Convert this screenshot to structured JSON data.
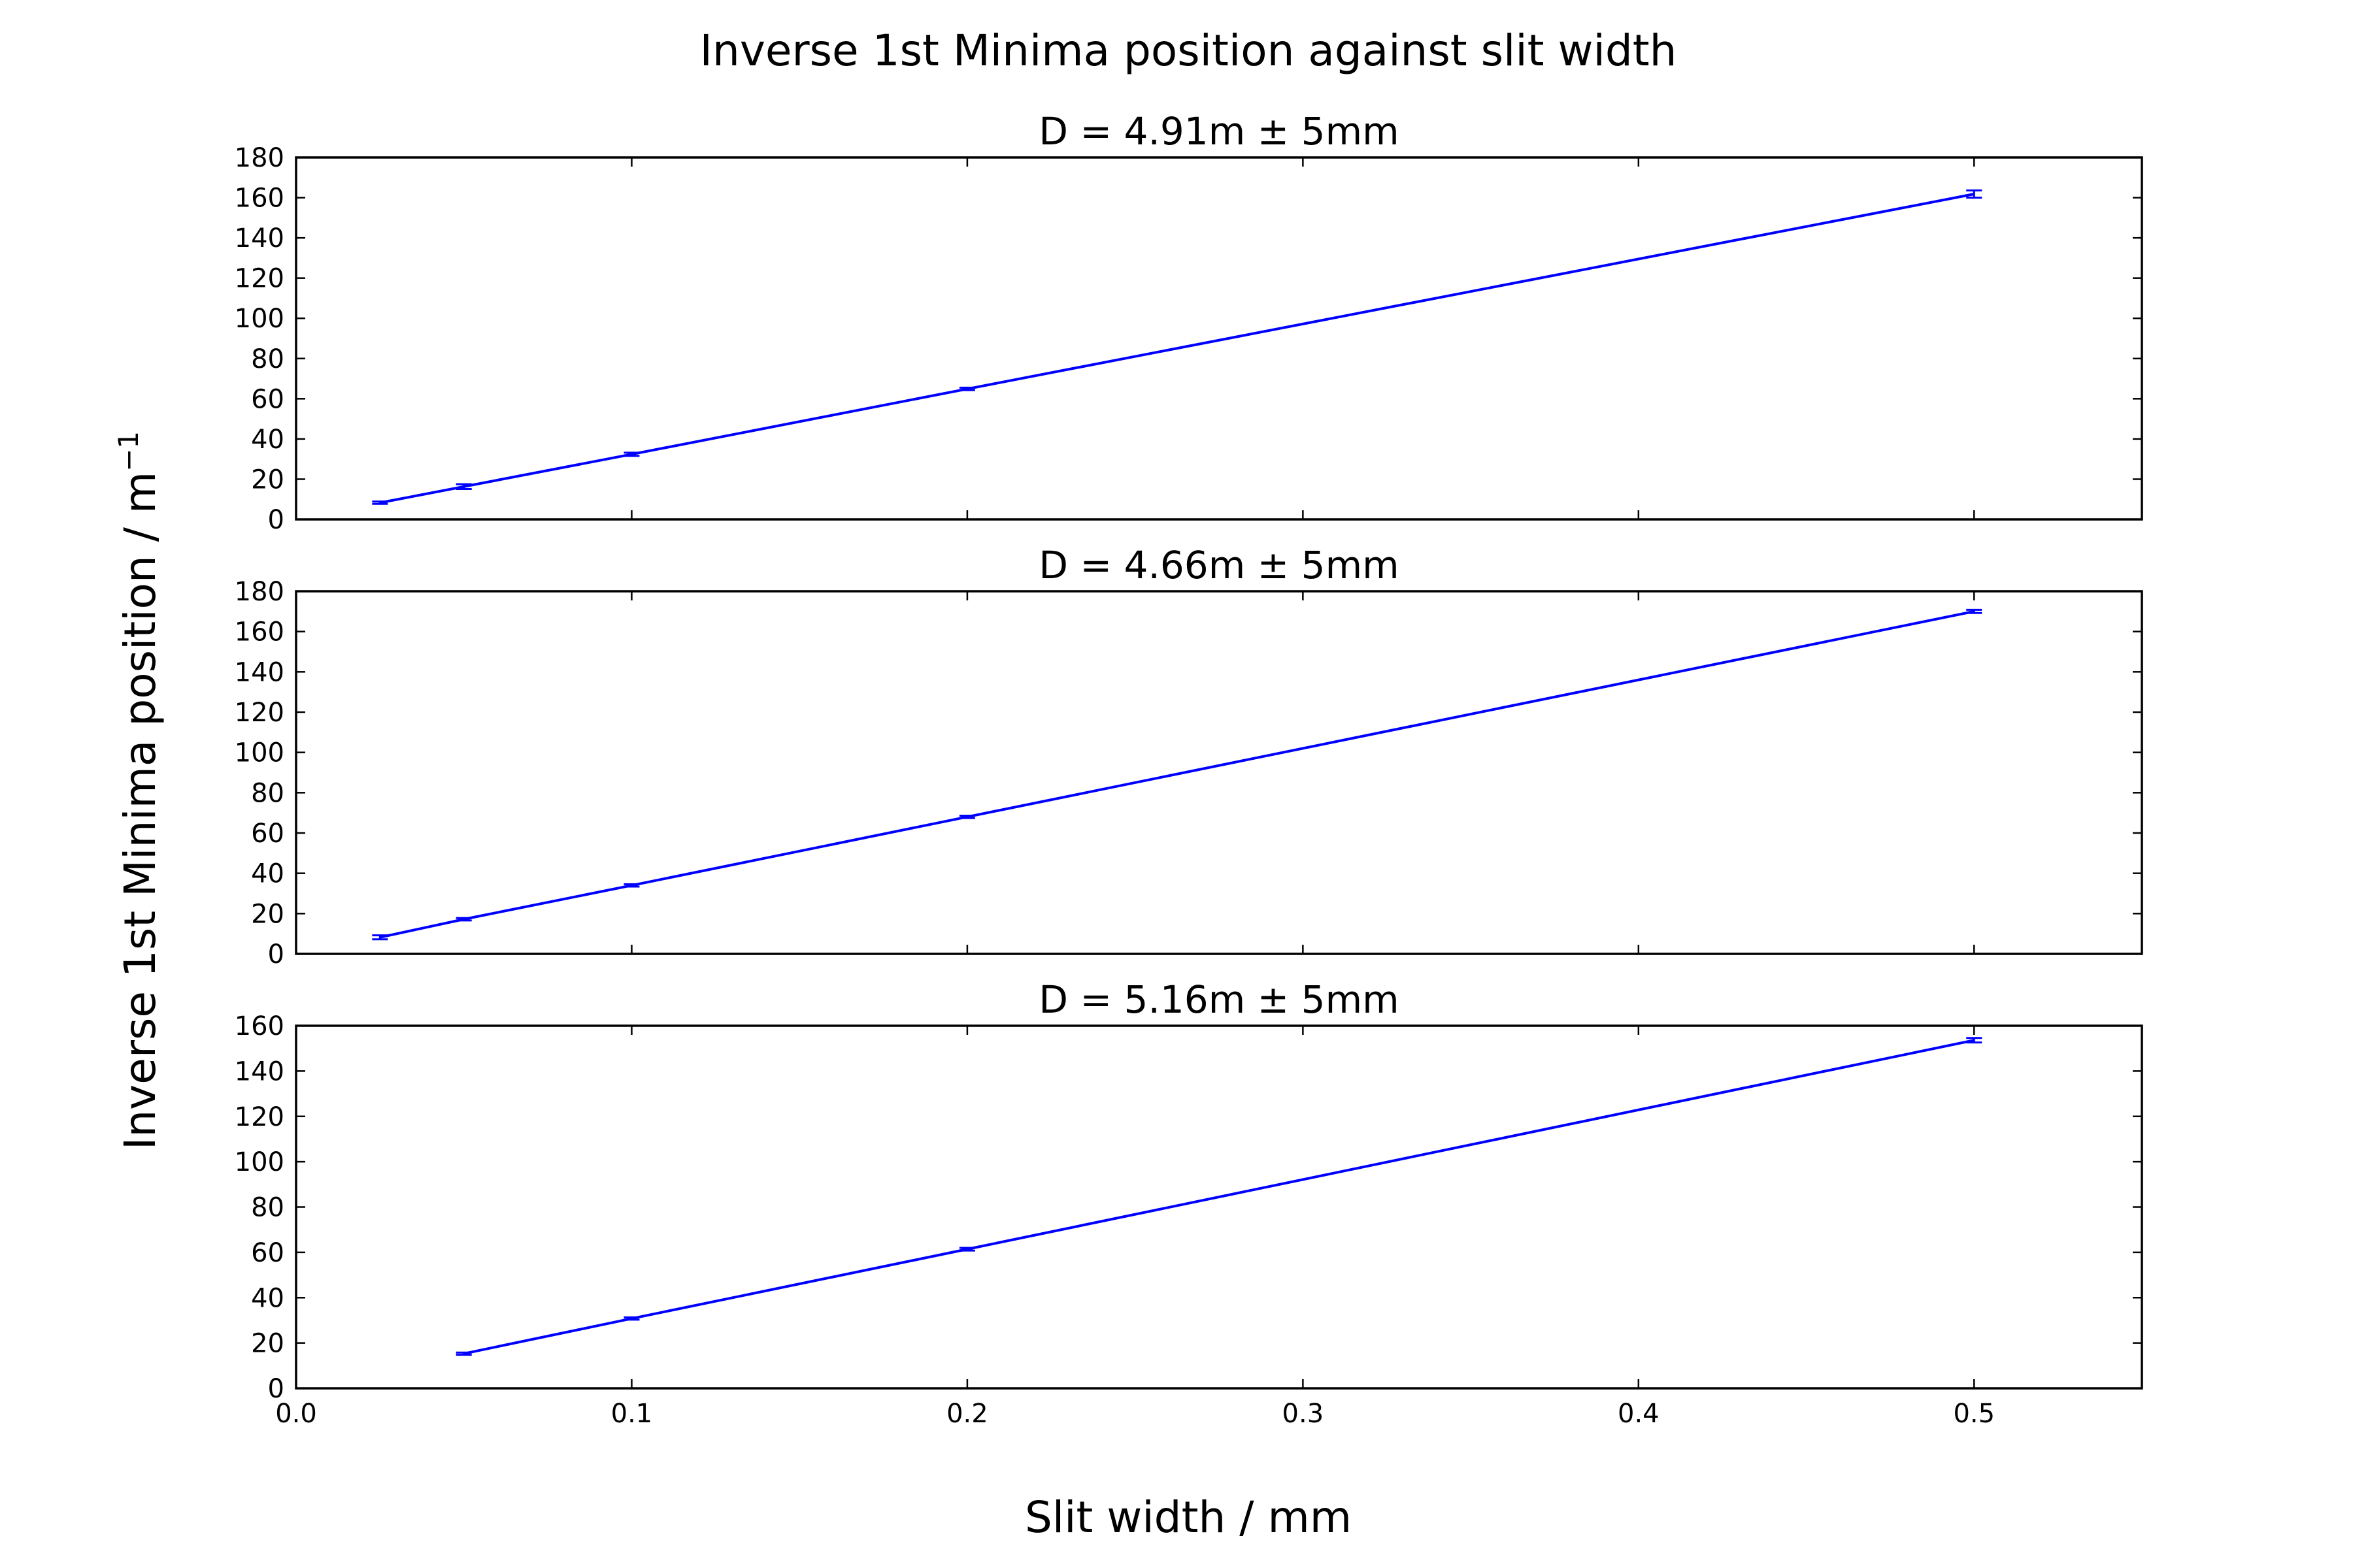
{
  "figure": {
    "title": "Inverse 1st Minima position against slit width",
    "xlabel": "Slit width / mm",
    "ylabel_main": "Inverse 1st Minima position / m",
    "ylabel_sup": "−1"
  },
  "colors": {
    "series": "#0000ff",
    "axes": "#000000",
    "background": "#ffffff"
  },
  "chart_data": [
    {
      "type": "line",
      "title": "D = 4.91m ± 5mm",
      "x": [
        0.025,
        0.05,
        0.1,
        0.2,
        0.5
      ],
      "y": [
        8.3,
        16.3,
        32.4,
        64.9,
        161.8
      ],
      "yerr": [
        0.6,
        1.2,
        0.8,
        0.6,
        1.8
      ],
      "xlim": [
        0.0,
        0.55
      ],
      "ylim": [
        0,
        180
      ],
      "yticks": [
        0,
        20,
        40,
        60,
        80,
        100,
        120,
        140,
        160,
        180
      ],
      "xticks": [
        0.0,
        0.1,
        0.2,
        0.3,
        0.4,
        0.5
      ],
      "show_xticklabels": false,
      "grid": false
    },
    {
      "type": "line",
      "title": "D = 4.66m ± 5mm",
      "x": [
        0.025,
        0.05,
        0.1,
        0.2,
        0.5
      ],
      "y": [
        8.2,
        17.2,
        34.0,
        68.0,
        170.0
      ],
      "yerr": [
        1.0,
        0.6,
        0.6,
        0.6,
        0.8
      ],
      "xlim": [
        0.0,
        0.55
      ],
      "ylim": [
        0,
        180
      ],
      "yticks": [
        0,
        20,
        40,
        60,
        80,
        100,
        120,
        140,
        160,
        180
      ],
      "xticks": [
        0.0,
        0.1,
        0.2,
        0.3,
        0.4,
        0.5
      ],
      "show_xticklabels": false,
      "grid": false
    },
    {
      "type": "line",
      "title": "D = 5.16m ± 5mm",
      "x": [
        0.05,
        0.1,
        0.2,
        0.5
      ],
      "y": [
        15.3,
        30.8,
        61.4,
        153.6
      ],
      "yerr": [
        0.5,
        0.5,
        0.6,
        1.0
      ],
      "xlim": [
        0.0,
        0.55
      ],
      "ylim": [
        0,
        160
      ],
      "yticks": [
        0,
        20,
        40,
        60,
        80,
        100,
        120,
        140,
        160
      ],
      "xticks": [
        0.0,
        0.1,
        0.2,
        0.3,
        0.4,
        0.5
      ],
      "xticklabels": [
        "0.0",
        "0.1",
        "0.2",
        "0.3",
        "0.4",
        "0.5"
      ],
      "show_xticklabels": true,
      "grid": false
    }
  ]
}
